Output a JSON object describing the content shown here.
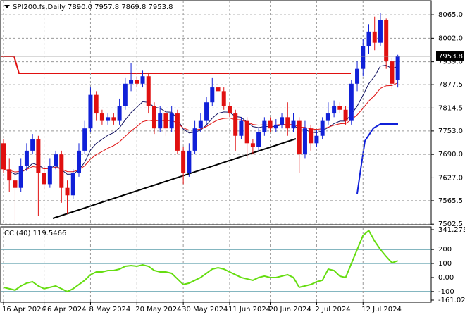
{
  "chart_data": {
    "type": "candlestick",
    "title": "SPI200.fs,Daily  7890.0 7957.8 7869.8 7953.8",
    "last_price_label": "7953.8",
    "categories": [
      "16 Apr 2024",
      null,
      null,
      null,
      null,
      null,
      null,
      "26 Apr 2024",
      null,
      null,
      null,
      null,
      null,
      null,
      null,
      "8 May 2024",
      null,
      null,
      null,
      null,
      null,
      null,
      null,
      "20 May 2024",
      null,
      null,
      null,
      null,
      null,
      null,
      null,
      "30 May 2024",
      null,
      null,
      null,
      null,
      null,
      null,
      null,
      "11 Jun 2024",
      null,
      null,
      null,
      null,
      null,
      null,
      "20 Jun 2024",
      null,
      null,
      null,
      null,
      null,
      null,
      null,
      "2 Jul 2024",
      null,
      null,
      null,
      null,
      null,
      null,
      null,
      "12 Jul 2024",
      null,
      null,
      null,
      null,
      null,
      null
    ],
    "open": [
      7720,
      7650,
      7620,
      7600,
      7660,
      7700,
      7730,
      7640,
      7610,
      7660,
      7690,
      7600,
      7580,
      7640,
      7700,
      7760,
      7850,
      7800,
      7780,
      7790,
      7780,
      7820,
      7880,
      7890,
      7880,
      7900,
      7820,
      7760,
      7800,
      7760,
      7800,
      7700,
      7640,
      7700,
      7760,
      7780,
      7830,
      7870,
      7860,
      7820,
      7800,
      7740,
      7780,
      7720,
      7710,
      7750,
      7780,
      7760,
      7770,
      7790,
      7760,
      7780,
      7690,
      7760,
      7720,
      7740,
      7780,
      7800,
      7820,
      7810,
      7780,
      7880,
      7920,
      7980,
      8020,
      7990,
      8050,
      7940,
      7890
    ],
    "high": [
      7730,
      7680,
      7640,
      7680,
      7720,
      7745,
      7740,
      7660,
      7680,
      7700,
      7700,
      7620,
      7650,
      7720,
      7780,
      7870,
      7860,
      7810,
      7800,
      7800,
      7840,
      7895,
      7935,
      7900,
      7915,
      7910,
      7830,
      7820,
      7810,
      7820,
      7810,
      7710,
      7720,
      7780,
      7800,
      7845,
      7895,
      7880,
      7870,
      7830,
      7810,
      7790,
      7790,
      7730,
      7760,
      7790,
      7790,
      7785,
      7800,
      7830,
      7800,
      7790,
      7780,
      7770,
      7755,
      7790,
      7830,
      7835,
      7830,
      7820,
      7890,
      7940,
      8000,
      8040,
      8060,
      8070,
      8055,
      7950,
      7957.8
    ],
    "low": [
      7640,
      7590,
      7510,
      7590,
      7645,
      7690,
      7525,
      7595,
      7600,
      7650,
      7560,
      7530,
      7570,
      7630,
      7690,
      7750,
      7780,
      7770,
      7770,
      7770,
      7770,
      7810,
      7860,
      7870,
      7870,
      7800,
      7745,
      7750,
      7740,
      7750,
      7690,
      7610,
      7630,
      7690,
      7750,
      7770,
      7820,
      7850,
      7810,
      7790,
      7700,
      7730,
      7680,
      7690,
      7700,
      7740,
      7750,
      7750,
      7760,
      7740,
      7750,
      7640,
      7680,
      7700,
      7710,
      7730,
      7770,
      7790,
      7800,
      7770,
      7770,
      7860,
      7900,
      7960,
      7970,
      7980,
      7920,
      7865,
      7869.8
    ],
    "close": [
      7650,
      7620,
      7600,
      7660,
      7700,
      7730,
      7640,
      7610,
      7660,
      7690,
      7600,
      7580,
      7640,
      7700,
      7760,
      7850,
      7800,
      7780,
      7790,
      7780,
      7820,
      7880,
      7890,
      7880,
      7900,
      7820,
      7760,
      7800,
      7760,
      7800,
      7700,
      7640,
      7700,
      7760,
      7780,
      7830,
      7870,
      7860,
      7820,
      7800,
      7740,
      7780,
      7720,
      7710,
      7750,
      7780,
      7760,
      7770,
      7790,
      7760,
      7780,
      7690,
      7760,
      7720,
      7740,
      7780,
      7800,
      7820,
      7810,
      7780,
      7880,
      7920,
      7980,
      8020,
      7990,
      8050,
      7940,
      7880,
      7953.8
    ],
    "up_color": "#1020d8",
    "down_color": "#e01010",
    "ylim": [
      7501,
      8103
    ],
    "yticks": [
      {
        "value": 8065,
        "label": "8065.0"
      },
      {
        "value": 8002,
        "label": "8002.0"
      },
      {
        "value": 7939,
        "label": "7939.0"
      },
      7877.5,
      7814.5,
      {
        "value": 7753,
        "label": "7753.0"
      },
      {
        "value": 7690,
        "label": "7690.0"
      },
      {
        "value": 7627,
        "label": "7627.0"
      },
      7565.5,
      7502.5
    ],
    "grid": true,
    "indicator": {
      "label": "CCI(40) 119.5466",
      "color": "#66dd11",
      "values": [
        -70,
        -80,
        -90,
        -60,
        -40,
        -30,
        -60,
        -80,
        -70,
        -60,
        -80,
        -100,
        -80,
        -50,
        -20,
        20,
        40,
        40,
        50,
        50,
        60,
        80,
        85,
        80,
        90,
        80,
        50,
        40,
        40,
        30,
        -10,
        -50,
        -40,
        -20,
        0,
        30,
        60,
        70,
        60,
        40,
        20,
        0,
        -10,
        -20,
        0,
        10,
        0,
        0,
        10,
        20,
        0,
        -70,
        -60,
        -50,
        -30,
        -20,
        60,
        50,
        10,
        0,
        100,
        200,
        300,
        335,
        260,
        200,
        150,
        105,
        119.5466
      ],
      "ylim": [
        -161.0203,
        341.2733
      ],
      "yticks": [
        341.2733,
        200,
        100,
        {
          "value": 0,
          "label": "0.00"
        },
        -100,
        -161.0203
      ],
      "levels": [
        200,
        100,
        -100
      ]
    }
  }
}
